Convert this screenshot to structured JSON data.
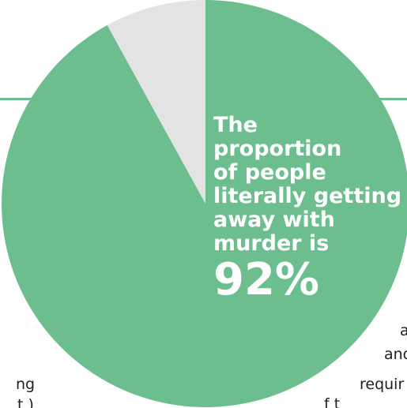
{
  "colors": {
    "primary_slice": "#6cbe8f",
    "secondary_slice": "#e3e3e3",
    "headline_text": "#ffffff",
    "background": "#ffffff"
  },
  "chart_data": {
    "type": "pie",
    "slices": [
      {
        "value": 92,
        "color": "#6cbe8f"
      },
      {
        "value": 8,
        "color": "#e3e3e3"
      }
    ]
  },
  "headline": {
    "lines": [
      "The",
      "proportion",
      "of people",
      "literally getting",
      "away with",
      "murder is"
    ],
    "value": "92%"
  },
  "background_fragments": [
    "a",
    "and",
    "requir",
    "ng",
    "f t",
    "t )"
  ]
}
